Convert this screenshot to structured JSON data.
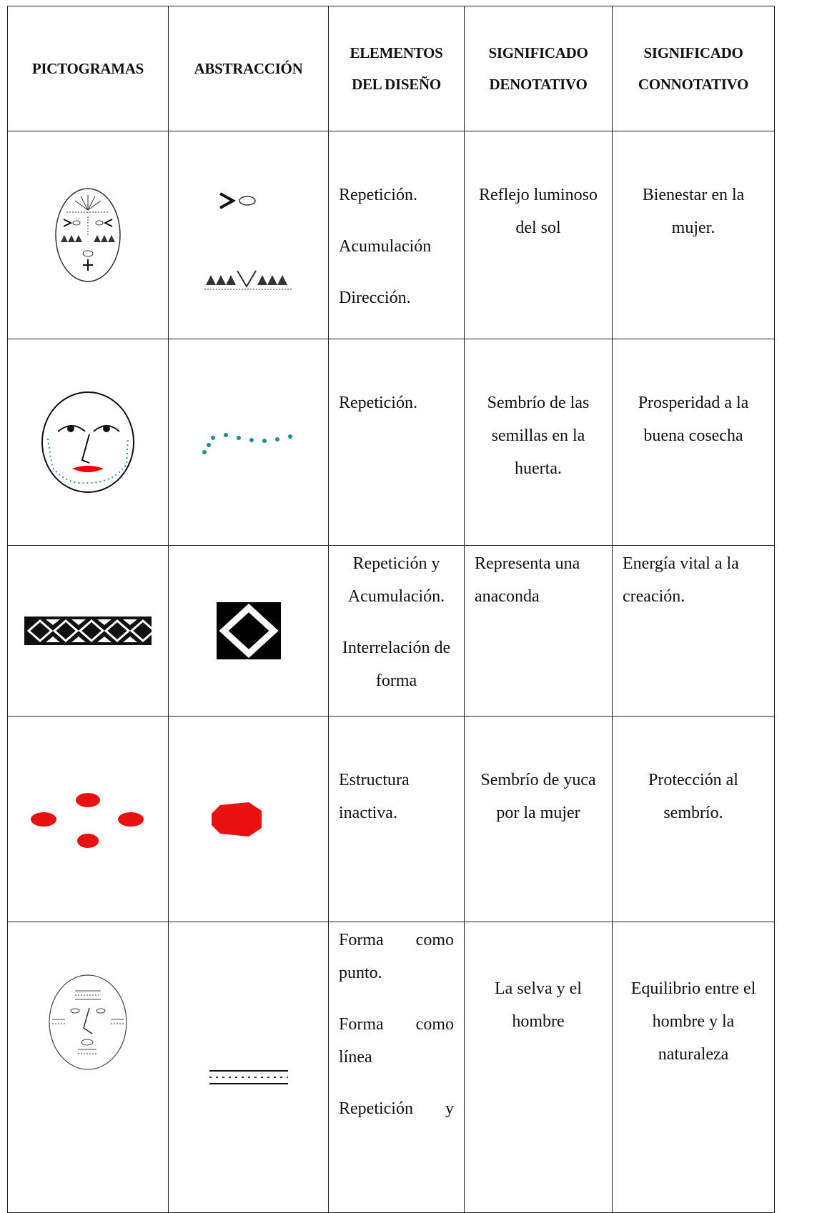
{
  "table": {
    "header": [
      "PICTOGRAMAS",
      "ABSTRACCIÓN",
      "ELEMENTOS DEL DISEÑO",
      "SIGNIFICADO DENOTATIVO",
      "SIGNIFICADO CONNOTATIVO"
    ],
    "rows": [
      {
        "elementos": [
          "Repetición.",
          "Acumulación",
          "Dirección."
        ],
        "denotativo": "Reflejo luminoso del sol",
        "connotativo": "Bienestar en la mujer."
      },
      {
        "elementos": [
          "Repetición."
        ],
        "denotativo": "Sembrío de las semillas en la huerta.",
        "connotativo": "Prosperidad a la buena cosecha"
      },
      {
        "elementos": [
          "Repetición y Acumulación.",
          "Interrelación de forma"
        ],
        "denotativo": "Representa una anaconda",
        "connotativo": "Energía vital a la creación."
      },
      {
        "elementos": [
          "Estructura inactiva."
        ],
        "denotativo": "Sembrío de yuca por la mujer",
        "connotativo": "Protección al sembrío."
      },
      {
        "elementos": [
          "Forma como punto.",
          "Forma como línea",
          "Repetición y"
        ],
        "denotativo": "La selva y el hombre",
        "connotativo": "Equilibrio entre el hombre y la naturaleza"
      }
    ]
  }
}
